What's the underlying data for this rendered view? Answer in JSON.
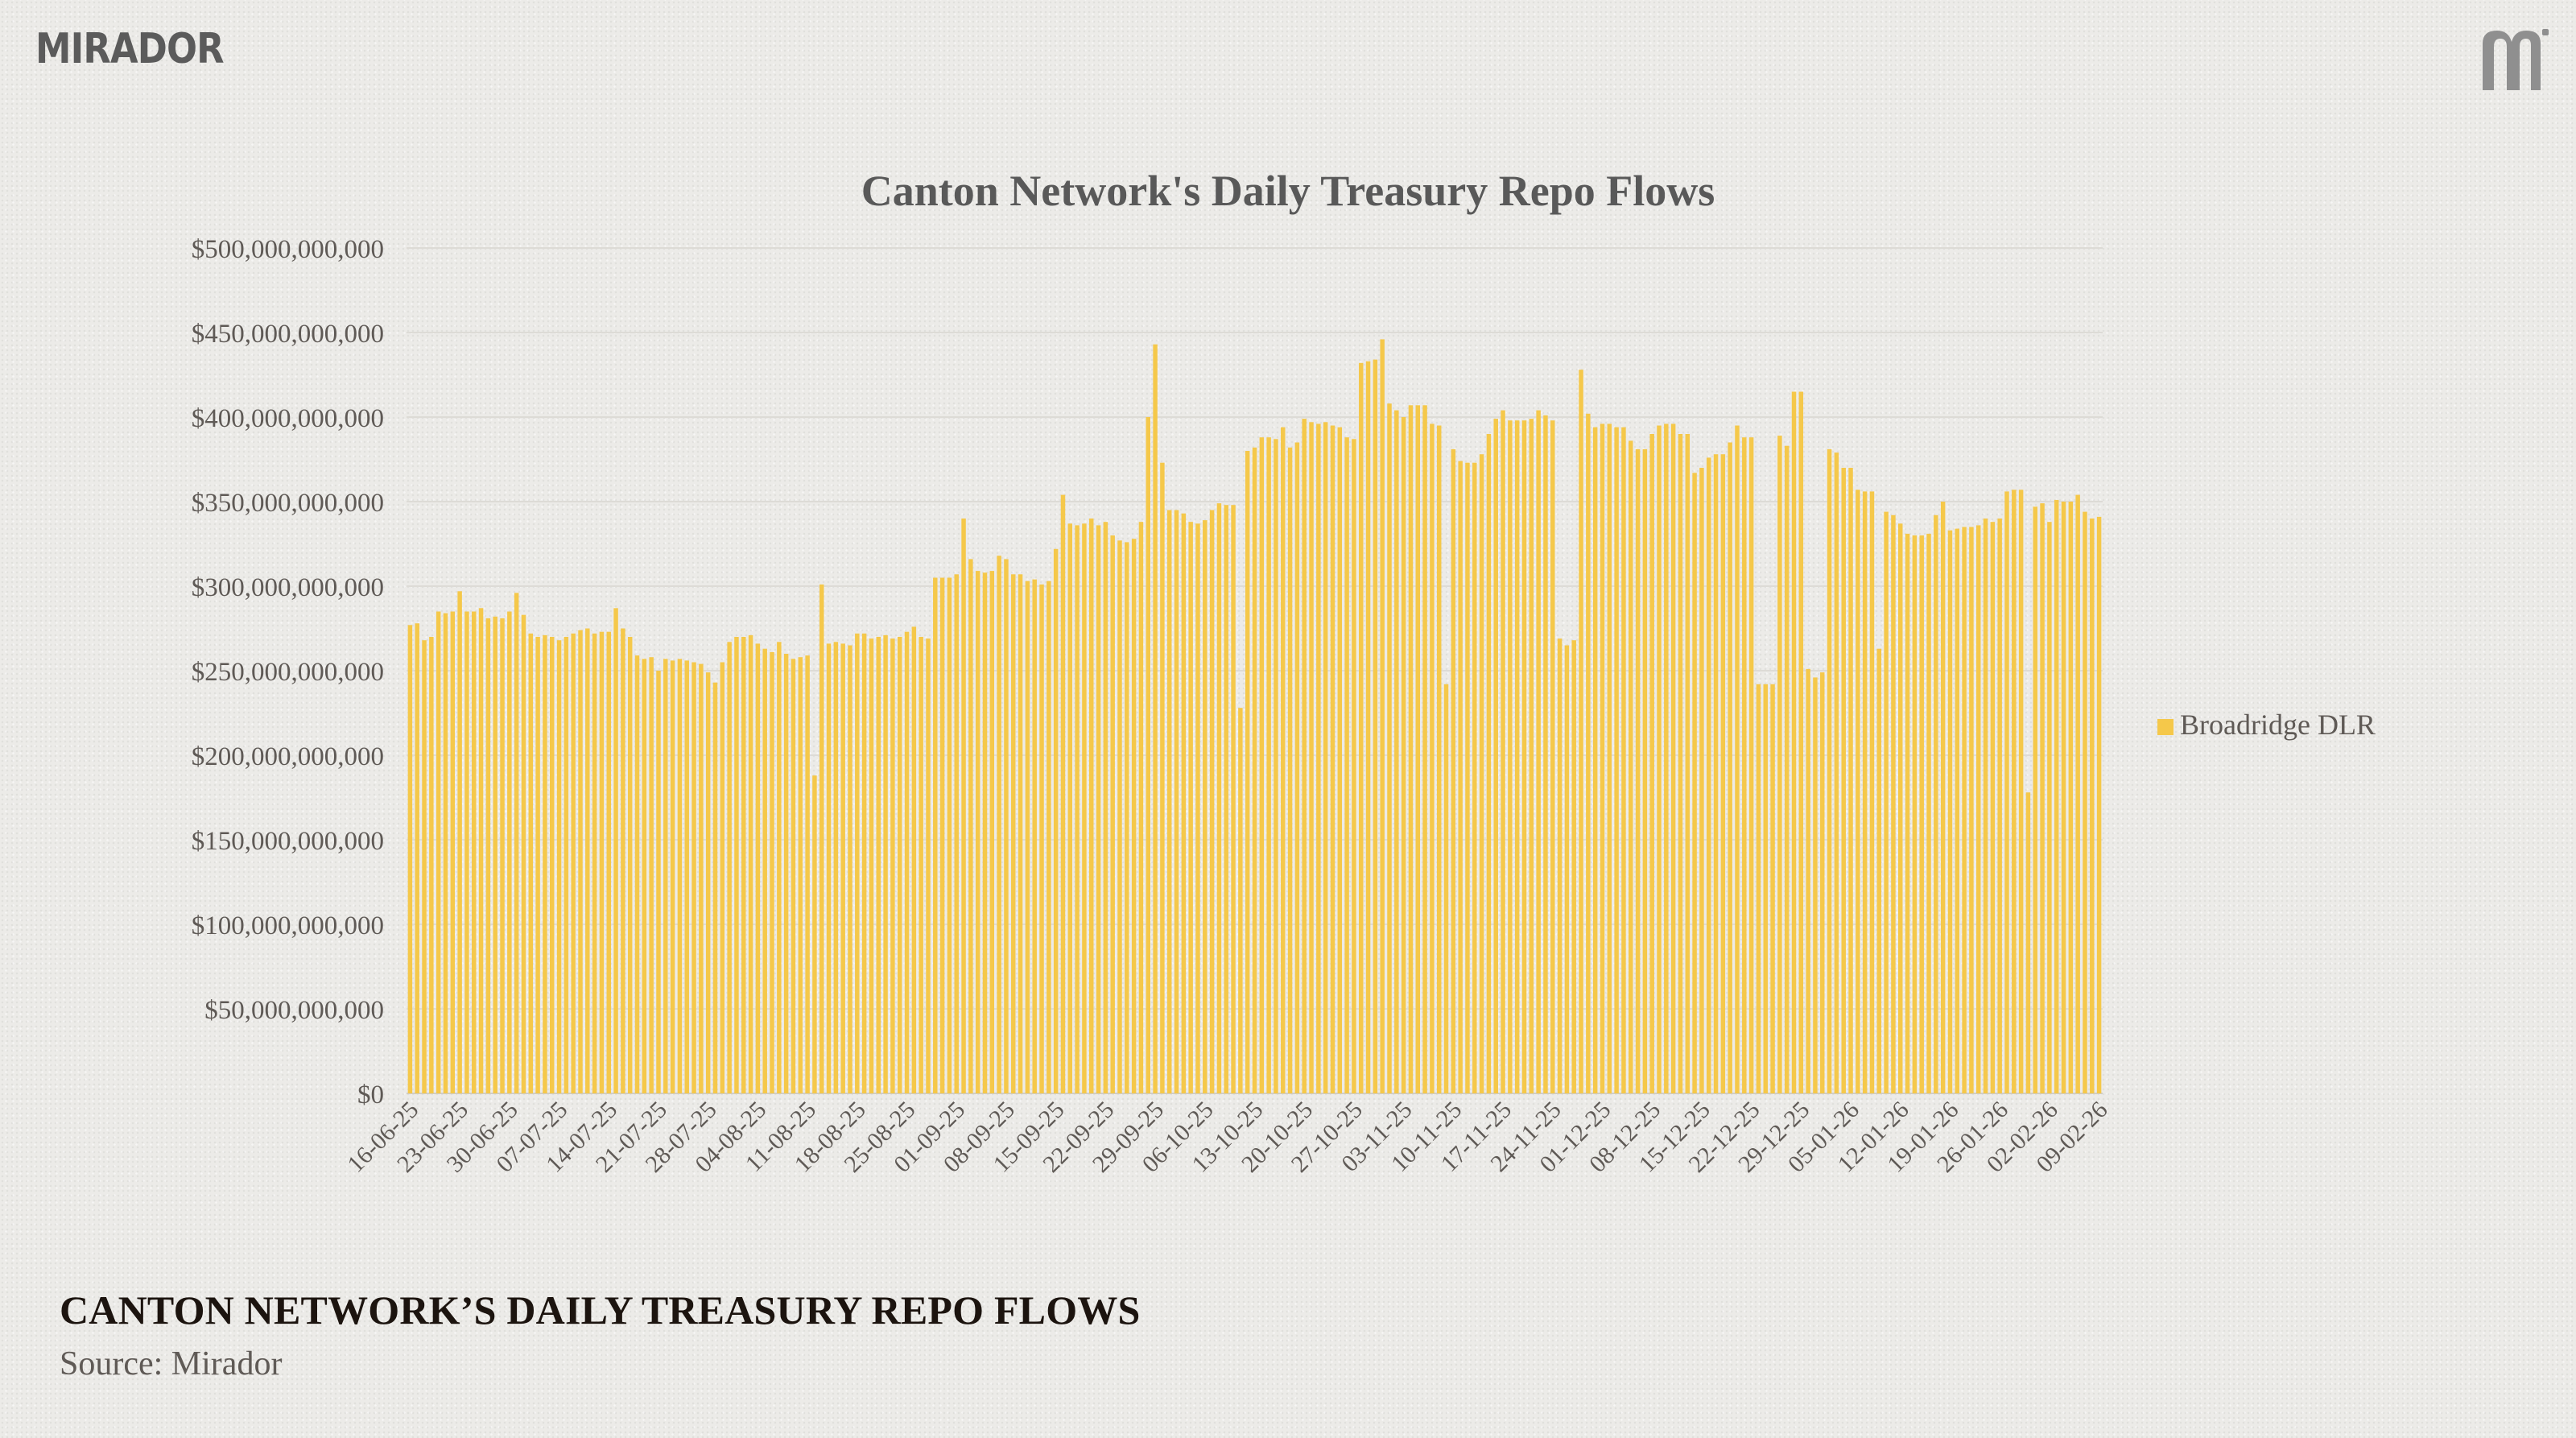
{
  "brand": {
    "name": "MIRADOR",
    "mark_icon": "mirador-m-icon"
  },
  "caption": {
    "title": "CANTON NETWORK’S DAILY TREASURY REPO FLOWS",
    "source": "Source: Mirador"
  },
  "colors": {
    "bar": "#f5c84a",
    "grid": "#dddbd6",
    "axis_text": "#5f5a56",
    "title_text": "#595959"
  },
  "chart_data": {
    "type": "bar",
    "title": "Canton Network's Daily Treasury Repo Flows",
    "xlabel": "",
    "ylabel": "",
    "ylim": [
      0,
      500000000000
    ],
    "yticks": [
      0,
      50000000000,
      100000000000,
      150000000000,
      200000000000,
      250000000000,
      300000000000,
      350000000000,
      400000000000,
      450000000000,
      500000000000
    ],
    "ytick_labels": [
      "$0",
      "$50,000,000,000",
      "$100,000,000,000",
      "$150,000,000,000",
      "$200,000,000,000",
      "$250,000,000,000",
      "$300,000,000,000",
      "$350,000,000,000",
      "$400,000,000,000",
      "$450,000,000,000",
      "$500,000,000,000"
    ],
    "xtick_labels": [
      "16-06-25",
      "23-06-25",
      "30-06-25",
      "07-07-25",
      "14-07-25",
      "21-07-25",
      "28-07-25",
      "04-08-25",
      "11-08-25",
      "18-08-25",
      "25-08-25",
      "01-09-25",
      "08-09-25",
      "15-09-25",
      "22-09-25",
      "29-09-25",
      "06-10-25",
      "13-10-25",
      "20-10-25",
      "27-10-25",
      "03-11-25",
      "10-11-25",
      "17-11-25",
      "24-11-25",
      "01-12-25",
      "08-12-25",
      "15-12-25",
      "22-12-25",
      "29-12-25",
      "05-01-26",
      "12-01-26",
      "19-01-26",
      "26-01-26",
      "02-02-26",
      "09-02-26"
    ],
    "grid": true,
    "legend_position": "right",
    "series": [
      {
        "name": "Broadridge DLR",
        "color": "#f5c84a",
        "values": [
          277,
          278,
          268,
          270,
          285,
          284,
          285,
          297,
          285,
          285,
          287,
          281,
          282,
          281,
          285,
          296,
          283,
          272,
          270,
          271,
          270,
          268,
          270,
          272,
          274,
          275,
          272,
          273,
          273,
          287,
          275,
          270,
          259,
          257,
          258,
          250,
          257,
          256,
          257,
          256,
          255,
          254,
          249,
          243,
          255,
          267,
          270,
          270,
          271,
          266,
          263,
          261,
          267,
          260,
          257,
          258,
          259,
          188,
          301,
          266,
          267,
          266,
          265,
          272,
          272,
          269,
          270,
          271,
          269,
          270,
          273,
          276,
          270,
          269,
          305,
          305,
          305,
          307,
          340,
          316,
          309,
          308,
          309,
          318,
          316,
          307,
          307,
          303,
          304,
          301,
          303,
          322,
          354,
          337,
          336,
          337,
          340,
          336,
          338,
          330,
          327,
          326,
          328,
          338,
          400,
          443,
          373,
          345,
          345,
          343,
          338,
          337,
          339,
          345,
          349,
          348,
          348,
          228,
          380,
          382,
          388,
          388,
          387,
          394,
          382,
          385,
          399,
          397,
          396,
          397,
          395,
          394,
          388,
          387,
          432,
          433,
          434,
          446,
          408,
          404,
          400,
          407,
          407,
          407,
          396,
          395,
          242,
          381,
          374,
          373,
          373,
          378,
          390,
          399,
          404,
          398,
          398,
          398,
          399,
          404,
          401,
          398,
          269,
          265,
          268,
          428,
          402,
          394,
          396,
          396,
          394,
          394,
          386,
          381,
          381,
          390,
          395,
          396,
          396,
          390,
          390,
          367,
          370,
          376,
          378,
          378,
          385,
          395,
          388,
          388,
          242,
          242,
          242,
          389,
          383,
          415,
          415,
          251,
          246,
          249,
          381,
          379,
          370,
          370,
          357,
          356,
          356,
          263,
          344,
          342,
          337,
          331,
          330,
          330,
          331,
          342,
          350,
          333,
          334,
          335,
          335,
          336,
          340,
          338,
          340,
          356,
          357,
          357,
          178,
          347,
          349,
          338,
          351,
          350,
          350,
          354,
          344,
          340,
          341
        ]
      }
    ]
  }
}
